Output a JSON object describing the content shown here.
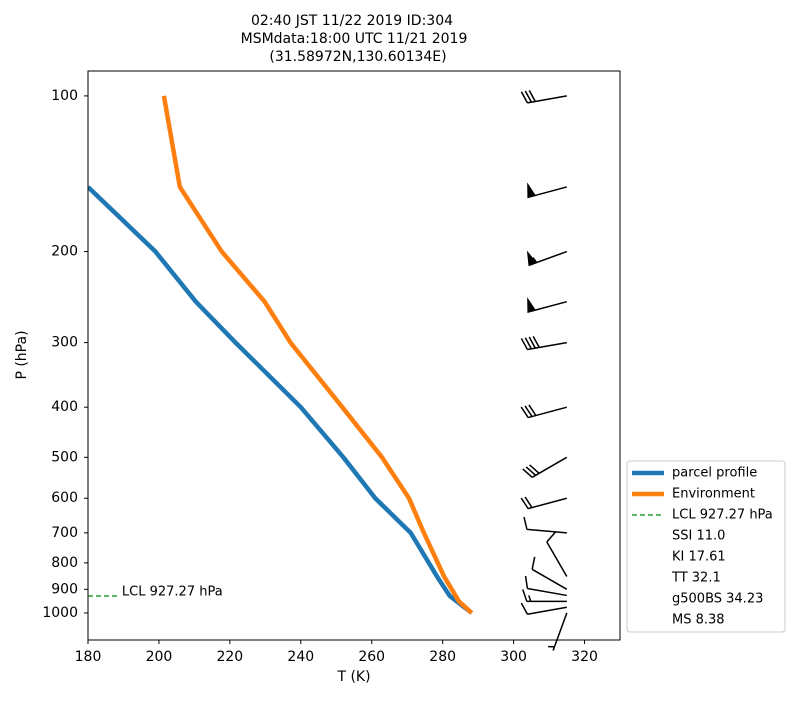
{
  "chart_data": {
    "type": "profile",
    "title": [
      "02:40 JST 11/22 2019  ID:304",
      "MSMdata:18:00 UTC 11/21 2019",
      "(31.58972N,130.60134E)"
    ],
    "xlabel": "T (K)",
    "ylabel": "P (hPa)",
    "xlim": [
      180,
      330
    ],
    "xticks": [
      180,
      200,
      220,
      240,
      260,
      280,
      300,
      320
    ],
    "ylim": [
      1128,
      89.5
    ],
    "yticks": [
      100,
      200,
      300,
      400,
      500,
      600,
      700,
      800,
      900,
      1000
    ],
    "log_y": true,
    "series": [
      {
        "name": "parcel profile",
        "color": "#1f77b4",
        "x": [
          288.2,
          282,
          278.4,
          271,
          261,
          252,
          240,
          221.6,
          210.4,
          199,
          180
        ],
        "y": [
          1000,
          927,
          850,
          700,
          600,
          500,
          400,
          300,
          250,
          200,
          150
        ]
      },
      {
        "name": "Environment",
        "color": "#ff7f0e",
        "x": [
          288.2,
          284.6,
          280.4,
          274.7,
          270.5,
          262.9,
          251.7,
          237.1,
          229.8,
          217.7,
          205.9,
          201.4
        ],
        "y": [
          1000,
          950,
          850,
          700,
          600,
          500,
          400,
          300,
          250,
          200,
          150,
          100
        ]
      }
    ],
    "lcl": {
      "name": "LCL 927.27 hPa",
      "pressure": 927.27,
      "x": [
        180,
        189
      ],
      "color": "#2ca02c",
      "label": "LCL 927.27 hPa"
    },
    "legend_notes": [
      "SSI 11.0",
      "KI 17.61",
      "TT 32.1",
      "g500BS 34.23",
      "MS 8.38"
    ],
    "wind": {
      "x": 315,
      "pressure": [
        100,
        150,
        200,
        250,
        300,
        400,
        500,
        600,
        700,
        850,
        900,
        925,
        950,
        975,
        1000
      ],
      "speed": [
        30,
        50,
        55,
        50,
        40,
        30,
        30,
        20,
        10,
        10,
        10,
        10,
        15,
        10,
        5
      ],
      "direction": [
        260,
        255,
        250,
        255,
        260,
        255,
        240,
        255,
        275,
        330,
        300,
        280,
        270,
        260,
        200
      ]
    },
    "legend": "lower right"
  }
}
